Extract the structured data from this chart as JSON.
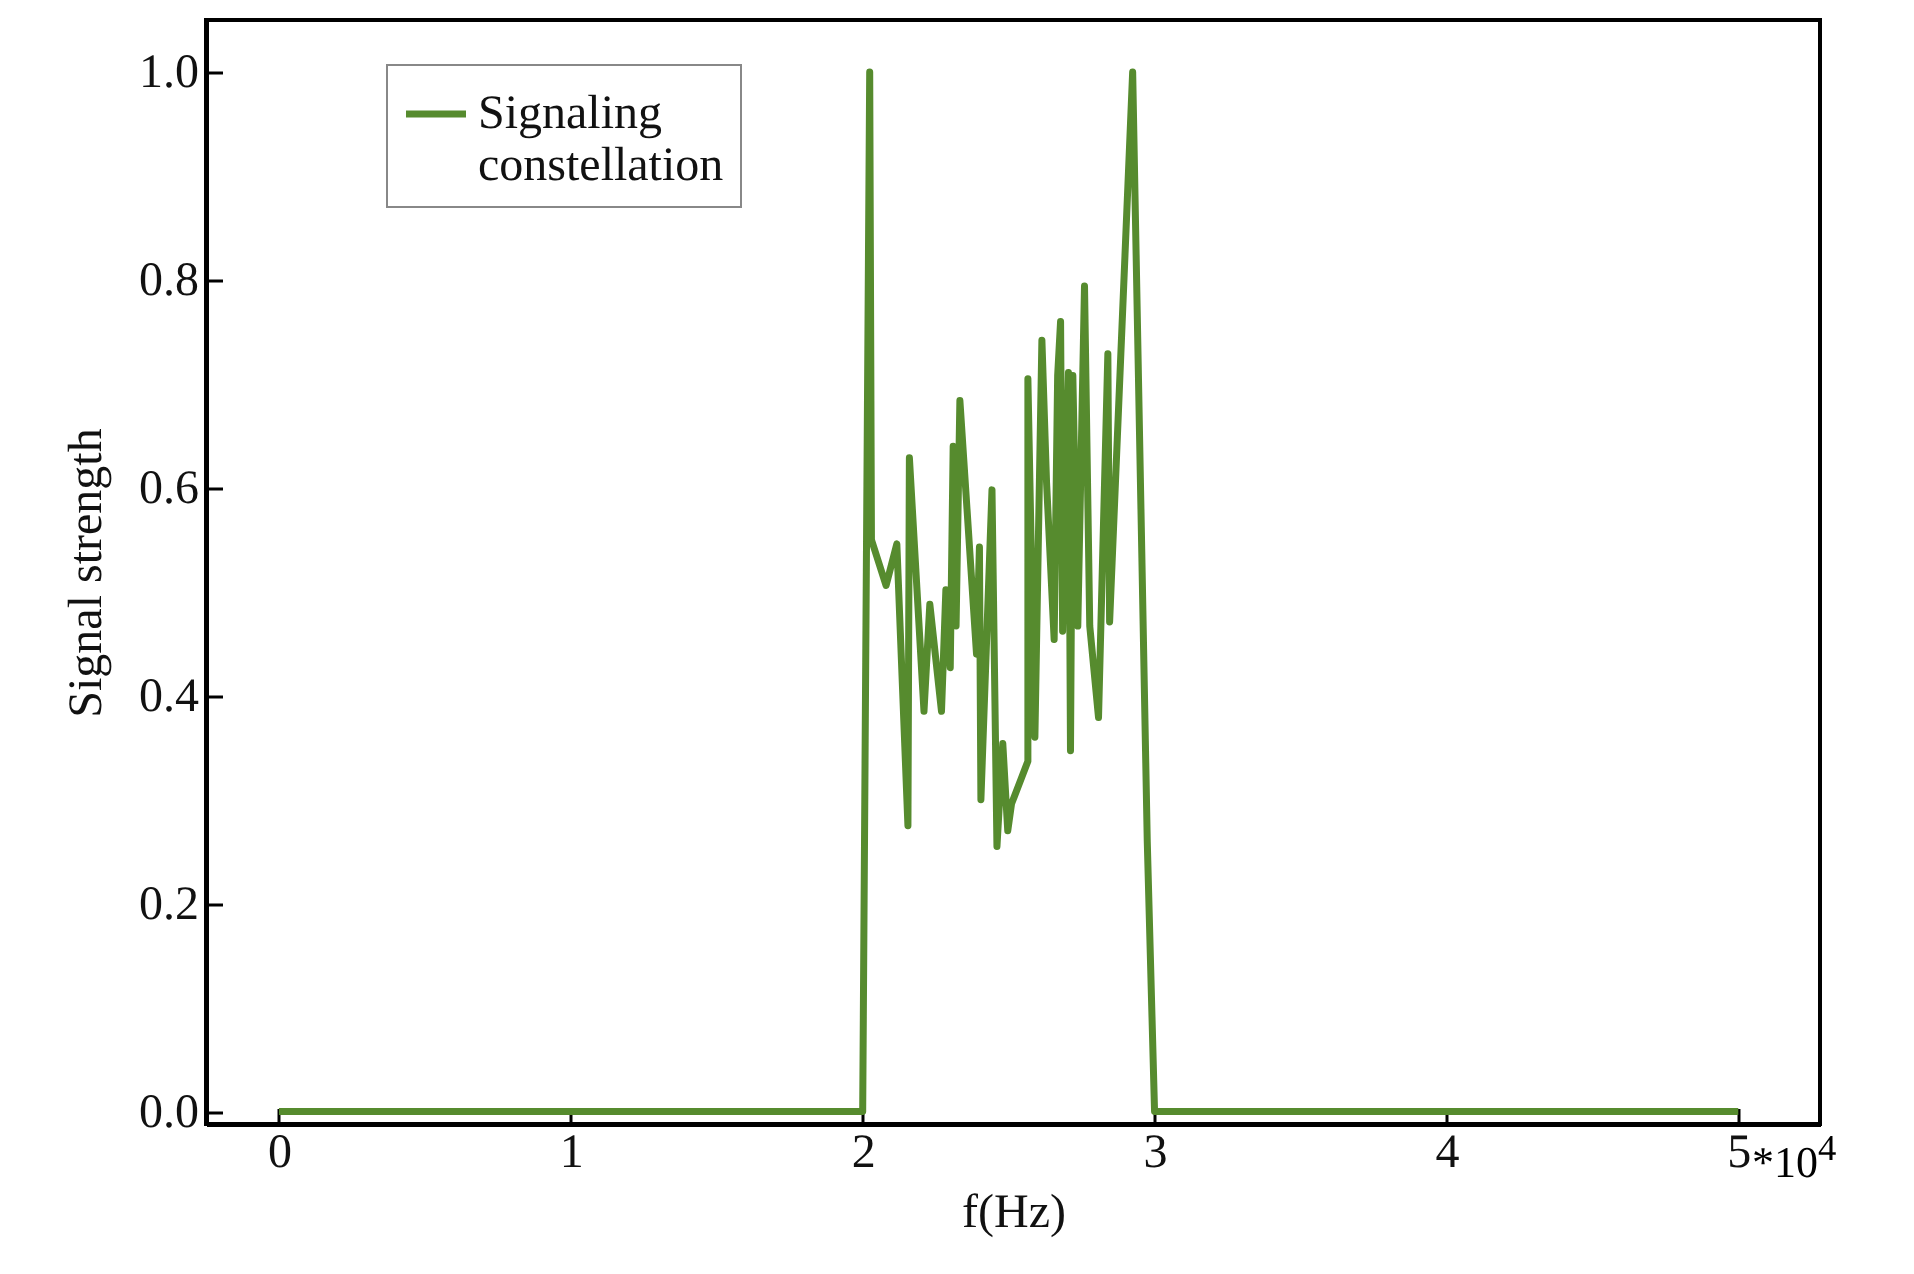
{
  "chart_data": {
    "type": "line",
    "xlabel": "f(Hz)",
    "ylabel": "Signal strength",
    "annotations": [
      "*10$^{4}$"
    ],
    "x": [
      0,
      2.0,
      2.024,
      2.03,
      2.08,
      2.117,
      2.155,
      2.16,
      2.21,
      2.23,
      2.27,
      2.285,
      2.3,
      2.31,
      2.32,
      2.333,
      2.39,
      2.4,
      2.405,
      2.443,
      2.46,
      2.48,
      2.497,
      2.51,
      2.566,
      2.566,
      2.59,
      2.614,
      2.63,
      2.656,
      2.668,
      2.678,
      2.685,
      2.705,
      2.712,
      2.72,
      2.737,
      2.76,
      2.778,
      2.808,
      2.84,
      2.846,
      2.925,
      2.975,
      3.0,
      5.0
    ],
    "series": [
      {
        "name": "Signaling constellation",
        "color": "#568b2e",
        "values": [
          0,
          0,
          1.0,
          0.55,
          0.506,
          0.546,
          0.275,
          0.629,
          0.385,
          0.488,
          0.385,
          0.502,
          0.427,
          0.64,
          0.467,
          0.684,
          0.44,
          0.543,
          0.3,
          0.598,
          0.255,
          0.354,
          0.27,
          0.296,
          0.337,
          0.705,
          0.36,
          0.742,
          0.605,
          0.454,
          0.708,
          0.76,
          0.462,
          0.711,
          0.347,
          0.708,
          0.467,
          0.794,
          0.467,
          0.379,
          0.729,
          0.471,
          1.0,
          0.26,
          0,
          0
        ]
      }
    ],
    "xlim": [
      -0.25,
      5.28
    ],
    "xticks": [
      0,
      1,
      2,
      3,
      4,
      5
    ],
    "ylim": [
      -0.012,
      1.05
    ],
    "yticks": [
      {
        "value": 0,
        "label": "0.0"
      },
      0.2,
      0.4,
      0.6,
      0.8,
      {
        "value": 1,
        "label": "1.0"
      }
    ],
    "legend": "top left",
    "grid": false,
    "line_style": "solid"
  }
}
